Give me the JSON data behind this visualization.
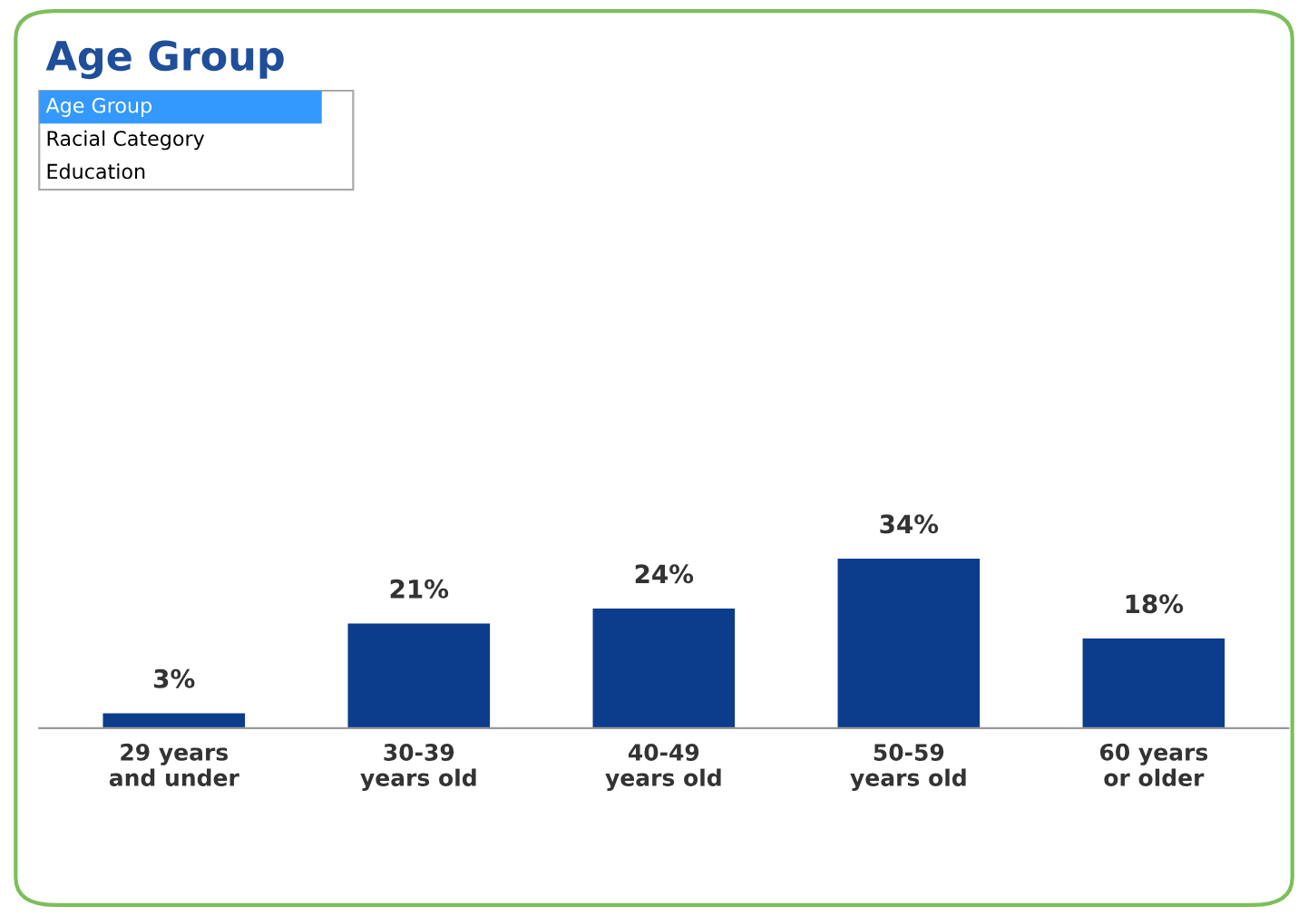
{
  "chart_data": {
    "type": "bar",
    "title": "Age Group",
    "categories": [
      "29 years\nand under",
      "30-39\nyears old",
      "40-49\nyears old",
      "50-59\nyears old",
      "60 years\nor older"
    ],
    "values": [
      3,
      21,
      24,
      34,
      18
    ],
    "value_labels": [
      "3%",
      "21%",
      "24%",
      "34%",
      "18%"
    ],
    "color": "#0b3d8c",
    "tick_labels": "x",
    "grid": false,
    "annotations": [
      "Age Group",
      "Racial Category",
      "Education"
    ]
  }
}
